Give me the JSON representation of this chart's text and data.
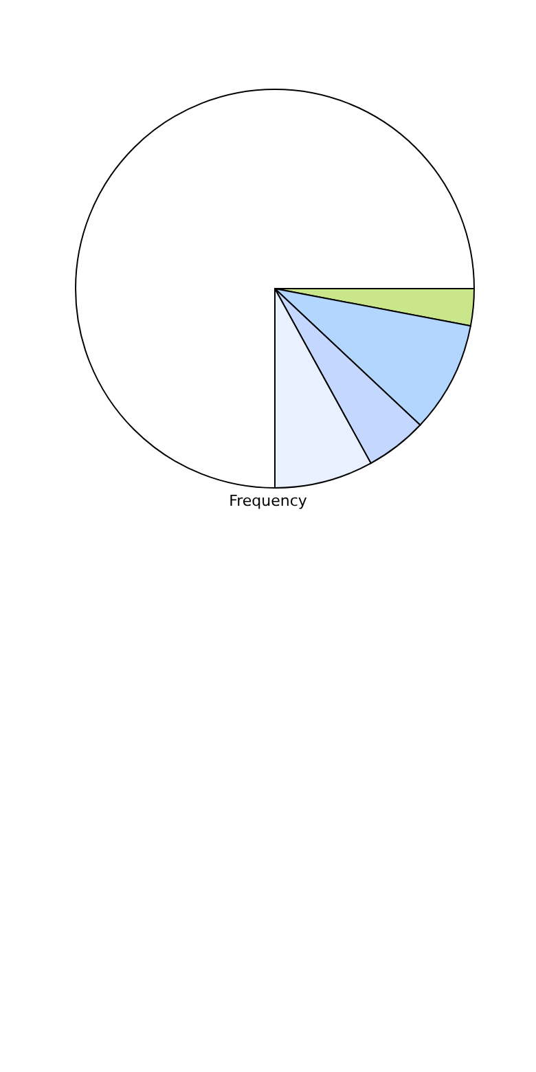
{
  "chart_data": {
    "type": "pie",
    "xlabel": "Frequency",
    "categories": [
      null,
      null,
      null,
      null,
      null
    ],
    "values": [
      3,
      9,
      5,
      8,
      75
    ],
    "colors": [
      "#c9e78a",
      "#b3d6ff",
      "#c4d8ff",
      "#e9f0ff",
      "#ffffff"
    ]
  }
}
